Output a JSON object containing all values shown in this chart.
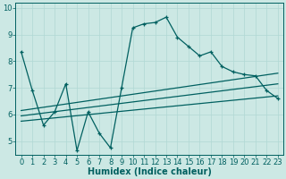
{
  "xlabel": "Humidex (Indice chaleur)",
  "background_color": "#cce8e4",
  "line_color": "#006060",
  "xlim": [
    -0.5,
    23.5
  ],
  "ylim": [
    4.5,
    10.2
  ],
  "yticks": [
    5,
    6,
    7,
    8,
    9,
    10
  ],
  "xticks": [
    0,
    1,
    2,
    3,
    4,
    5,
    6,
    7,
    8,
    9,
    10,
    11,
    12,
    13,
    14,
    15,
    16,
    17,
    18,
    19,
    20,
    21,
    22,
    23
  ],
  "curve1_x": [
    0,
    1,
    2,
    3,
    4,
    5,
    6,
    7,
    8,
    9,
    10,
    11,
    12,
    13,
    14,
    15,
    16,
    17,
    18,
    19,
    20,
    21,
    22,
    23
  ],
  "curve1_y": [
    8.35,
    6.9,
    5.6,
    6.1,
    7.15,
    4.65,
    6.1,
    5.3,
    4.75,
    7.0,
    9.25,
    9.4,
    9.45,
    9.65,
    8.9,
    8.55,
    8.2,
    8.35,
    7.8,
    7.6,
    7.5,
    7.45,
    6.9,
    6.6
  ],
  "line2_x": [
    0,
    23
  ],
  "line2_y": [
    5.75,
    6.7
  ],
  "line3_x": [
    0,
    23
  ],
  "line3_y": [
    5.95,
    7.15
  ],
  "line4_x": [
    0,
    23
  ],
  "line4_y": [
    6.15,
    7.55
  ],
  "grid_color": "#b0d8d4",
  "axis_color": "#006060",
  "tick_label_color": "#006060",
  "xlabel_color": "#006060",
  "xlabel_fontsize": 7,
  "tick_fontsize": 6
}
